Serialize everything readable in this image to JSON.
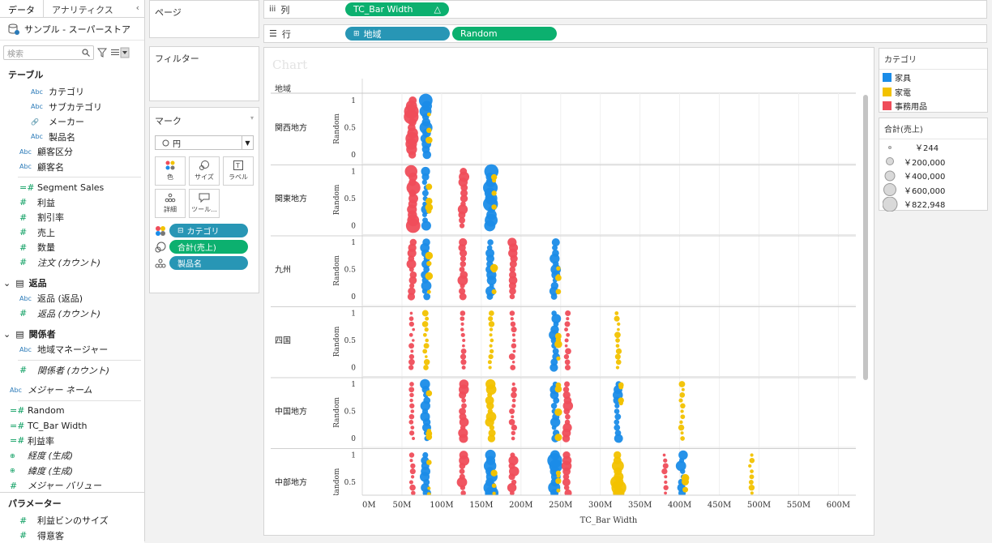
{
  "sidebar": {
    "tabs": [
      "データ",
      "アナリティクス"
    ],
    "collapse_glyph": "‹",
    "datasource": "サンプル - スーパーストア",
    "search_placeholder": "検索",
    "tables_header": "テーブル",
    "fields": [
      {
        "type": "Abc",
        "name": "カテゴリ",
        "indent": true,
        "kind": "dim"
      },
      {
        "type": "Abc",
        "name": "サブカテゴリ",
        "indent": true,
        "kind": "dim"
      },
      {
        "type": "🔗",
        "name": "メーカー",
        "indent": true,
        "kind": "dim"
      },
      {
        "type": "Abc",
        "name": "製品名",
        "indent": true,
        "kind": "dim"
      },
      {
        "type": "Abc",
        "name": "顧客区分",
        "indent": false,
        "kind": "dim"
      },
      {
        "type": "Abc",
        "name": "顧客名",
        "indent": false,
        "kind": "dim"
      },
      {
        "type": "=#",
        "name": "Segment Sales",
        "indent": false,
        "kind": "meas",
        "divider_before": true
      },
      {
        "type": "#",
        "name": "利益",
        "indent": false,
        "kind": "meas"
      },
      {
        "type": "#",
        "name": "割引率",
        "indent": false,
        "kind": "meas"
      },
      {
        "type": "#",
        "name": "売上",
        "indent": false,
        "kind": "meas"
      },
      {
        "type": "#",
        "name": "数量",
        "indent": false,
        "kind": "meas"
      },
      {
        "type": "#",
        "name": "注文 (カウント)",
        "indent": false,
        "kind": "meas",
        "italic": true
      }
    ],
    "returns_group": "返品",
    "returns_fields": [
      {
        "type": "Abc",
        "name": "返品 (返品)",
        "kind": "dim"
      },
      {
        "type": "#",
        "name": "返品 (カウント)",
        "kind": "meas",
        "italic": true
      }
    ],
    "people_group": "関係者",
    "people_fields": [
      {
        "type": "Abc",
        "name": "地域マネージャー",
        "kind": "dim"
      },
      {
        "type": "#",
        "name": "関係者 (カウント)",
        "kind": "meas",
        "italic": true
      }
    ],
    "bottom_fields": [
      {
        "type": "Abc",
        "name": "メジャー ネーム",
        "kind": "dim",
        "italic": true
      },
      {
        "type": "=#",
        "name": "Random",
        "kind": "meas",
        "divider_before": true
      },
      {
        "type": "=#",
        "name": "TC_Bar Width",
        "kind": "meas"
      },
      {
        "type": "=#",
        "name": "利益率",
        "kind": "meas"
      },
      {
        "type": "⊕",
        "name": "経度 (生成)",
        "kind": "geo",
        "italic": true
      },
      {
        "type": "⊕",
        "name": "緯度 (生成)",
        "kind": "geo",
        "italic": true
      },
      {
        "type": "#",
        "name": "メジャー バリュー",
        "kind": "meas",
        "italic": true
      }
    ],
    "params_header": "パラメーター",
    "params": [
      {
        "type": "#",
        "name": "利益ビンのサイズ"
      },
      {
        "type": "#",
        "name": "得意客"
      }
    ]
  },
  "pages_label": "ページ",
  "filters_label": "フィルター",
  "columns_shelf": {
    "label": "列",
    "pills": [
      "TC_Bar Width"
    ],
    "delta_glyph": "△"
  },
  "rows_shelf": {
    "label": "行",
    "pills": [
      "地域",
      "Random"
    ]
  },
  "marks": {
    "title": "マーク",
    "type": "円",
    "buttons": [
      "色",
      "サイズ",
      "ラベル",
      "詳細",
      "ツール..."
    ],
    "pills": [
      "カテゴリ",
      "合計(売上)",
      "製品名"
    ]
  },
  "category_legend": {
    "title": "カテゴリ",
    "items": [
      {
        "label": "家具",
        "color": "#1a8ce8"
      },
      {
        "label": "家電",
        "color": "#f2c200"
      },
      {
        "label": "事務用品",
        "color": "#ef4d5a"
      }
    ]
  },
  "size_legend": {
    "title": "合計(売上)",
    "items": [
      "￥244",
      "￥200,000",
      "￥400,000",
      "￥600,000",
      "￥822,948"
    ]
  },
  "chart_data": {
    "type": "scatter",
    "title": "Chart",
    "row_header": "地域",
    "xlabel": "TC_Bar Width",
    "ylabel": "Random",
    "xlim": [
      0,
      620
    ],
    "x_ticks": [
      "0M",
      "50M",
      "100M",
      "150M",
      "200M",
      "250M",
      "300M",
      "350M",
      "400M",
      "450M",
      "500M",
      "550M",
      "600M"
    ],
    "x_tick_values": [
      0,
      50,
      100,
      150,
      200,
      250,
      300,
      350,
      400,
      450,
      500,
      550,
      600
    ],
    "y_ticks": [
      "0",
      "0.5",
      "1"
    ],
    "regions": [
      {
        "name": "関西地方",
        "columns": [
          {
            "x": 63,
            "cat": 2,
            "size": 3
          },
          {
            "x": 80,
            "cat": 0,
            "size": 3
          }
        ]
      },
      {
        "name": "関東地方",
        "columns": [
          {
            "x": 63,
            "cat": 2,
            "size": 3
          },
          {
            "x": 80,
            "cat": 0,
            "size": 2
          },
          {
            "x": 127,
            "cat": 2,
            "size": 2
          },
          {
            "x": 162,
            "cat": 0,
            "size": 3
          }
        ]
      },
      {
        "name": "九州",
        "columns": [
          {
            "x": 63,
            "cat": 2,
            "size": 2
          },
          {
            "x": 80,
            "cat": 0,
            "size": 2
          },
          {
            "x": 127,
            "cat": 2,
            "size": 2
          },
          {
            "x": 162,
            "cat": 0,
            "size": 2
          },
          {
            "x": 190,
            "cat": 2,
            "size": 2
          },
          {
            "x": 243,
            "cat": 0,
            "size": 2
          }
        ]
      },
      {
        "name": "四国",
        "columns": [
          {
            "x": 63,
            "cat": 2,
            "size": 1
          },
          {
            "x": 80,
            "cat": 1,
            "size": 1
          },
          {
            "x": 127,
            "cat": 2,
            "size": 1
          },
          {
            "x": 162,
            "cat": 1,
            "size": 1
          },
          {
            "x": 190,
            "cat": 2,
            "size": 1
          },
          {
            "x": 243,
            "cat": 0,
            "size": 2
          },
          {
            "x": 258,
            "cat": 2,
            "size": 1
          },
          {
            "x": 322,
            "cat": 1,
            "size": 1
          }
        ]
      },
      {
        "name": "中国地方",
        "columns": [
          {
            "x": 63,
            "cat": 2,
            "size": 1
          },
          {
            "x": 80,
            "cat": 0,
            "size": 2
          },
          {
            "x": 127,
            "cat": 2,
            "size": 2
          },
          {
            "x": 162,
            "cat": 1,
            "size": 2
          },
          {
            "x": 190,
            "cat": 2,
            "size": 1
          },
          {
            "x": 243,
            "cat": 0,
            "size": 2
          },
          {
            "x": 258,
            "cat": 2,
            "size": 2
          },
          {
            "x": 322,
            "cat": 0,
            "size": 2
          },
          {
            "x": 403,
            "cat": 1,
            "size": 1
          }
        ]
      },
      {
        "name": "中部地方",
        "columns": [
          {
            "x": 63,
            "cat": 2,
            "size": 1
          },
          {
            "x": 80,
            "cat": 0,
            "size": 2
          },
          {
            "x": 127,
            "cat": 2,
            "size": 2
          },
          {
            "x": 162,
            "cat": 0,
            "size": 3
          },
          {
            "x": 190,
            "cat": 2,
            "size": 2
          },
          {
            "x": 243,
            "cat": 0,
            "size": 3
          },
          {
            "x": 258,
            "cat": 2,
            "size": 2
          },
          {
            "x": 322,
            "cat": 1,
            "size": 3
          },
          {
            "x": 382,
            "cat": 2,
            "size": 1
          },
          {
            "x": 403,
            "cat": 0,
            "size": 2
          },
          {
            "x": 490,
            "cat": 1,
            "size": 1
          }
        ]
      }
    ]
  }
}
